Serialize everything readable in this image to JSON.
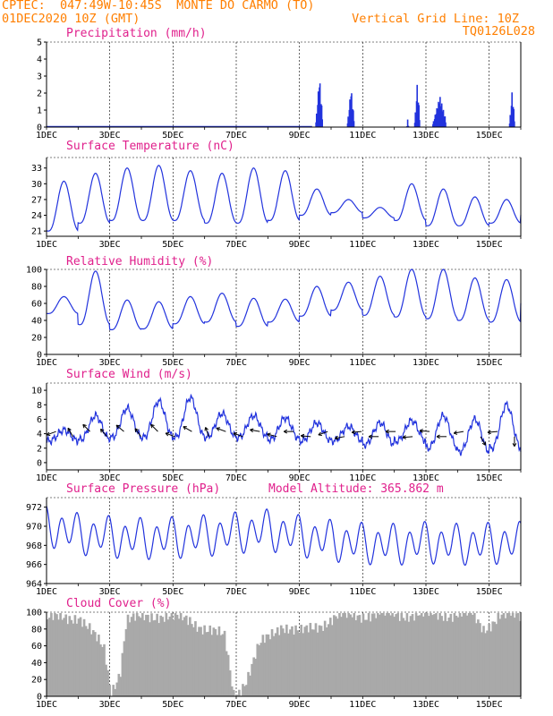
{
  "header": {
    "line1": "CPTEC:  047:49W-10:45S  MONTE DO CARMO (TO)",
    "line2_left": "01DEC2020 10Z (GMT)",
    "line2_right": "Vertical Grid Line: 10Z",
    "line3_right": "TQ0126L028"
  },
  "colors": {
    "header": "#ff7f00",
    "title": "#e0208c",
    "series": "#2233dd",
    "cloud": "#a9a9a9"
  },
  "x_tick_labels": [
    "1DEC",
    "3DEC",
    "5DEC",
    "7DEC",
    "9DEC",
    "11DEC",
    "13DEC",
    "15DEC"
  ],
  "chart_data": [
    {
      "type": "bar",
      "title": "Precipitation (mm/h)",
      "ylim": [
        0,
        5
      ],
      "yticks": [
        "0",
        "1",
        "2",
        "3",
        "4",
        "5"
      ],
      "x_domain_days": [
        1,
        16
      ],
      "bursts": [
        {
          "day": 9.6,
          "width": 0.2,
          "peak": 3.1
        },
        {
          "day": 10.6,
          "width": 0.2,
          "peak": 2.4
        },
        {
          "day": 12.4,
          "width": 0.05,
          "peak": 0.5
        },
        {
          "day": 12.7,
          "width": 0.15,
          "peak": 2.8
        },
        {
          "day": 13.4,
          "width": 0.4,
          "peak": 1.9
        },
        {
          "day": 15.7,
          "width": 0.15,
          "peak": 2.3
        }
      ]
    },
    {
      "type": "line",
      "title": "Surface Temperature (nC)",
      "ylim": [
        20,
        35
      ],
      "yticks": [
        "21",
        "24",
        "27",
        "30",
        "33"
      ],
      "ytick_values": [
        21,
        24,
        27,
        30,
        33
      ],
      "x_domain_days": [
        1,
        16
      ],
      "daily_max": [
        30.5,
        32,
        33,
        33.5,
        32.5,
        32,
        33,
        32.5,
        29,
        27,
        25.5,
        30,
        29,
        27.5,
        27,
        28
      ],
      "daily_min": [
        21,
        22.5,
        23,
        23,
        23,
        22.5,
        22.5,
        23,
        24,
        24.5,
        23.5,
        23,
        22,
        22,
        22.5,
        24
      ]
    },
    {
      "type": "line",
      "title": "Relative Humidity (%)",
      "ylim": [
        0,
        100
      ],
      "yticks": [
        "0",
        "20",
        "40",
        "60",
        "80",
        "100"
      ],
      "ytick_values": [
        0,
        20,
        40,
        60,
        80,
        100
      ],
      "x_domain_days": [
        1,
        16
      ],
      "daily_max": [
        68,
        98,
        64,
        62,
        68,
        72,
        66,
        65,
        80,
        85,
        92,
        100,
        100,
        90,
        88,
        90
      ],
      "daily_min": [
        48,
        35,
        29,
        30,
        36,
        38,
        33,
        38,
        45,
        52,
        46,
        44,
        42,
        40,
        38,
        60
      ]
    },
    {
      "type": "line",
      "title": "Surface Wind (m/s)",
      "ylim": [
        -1,
        11
      ],
      "yticks": [
        "0",
        "2",
        "4",
        "6",
        "8",
        "10"
      ],
      "ytick_values": [
        0,
        2,
        4,
        6,
        8,
        10
      ],
      "x_domain_days": [
        1,
        16
      ],
      "daily_max": [
        4.5,
        6.5,
        7.5,
        8.5,
        9,
        6.8,
        6.5,
        6.2,
        5.5,
        5,
        5.5,
        5.8,
        6.5,
        6,
        8,
        6
      ],
      "daily_min": [
        3,
        3.2,
        3.5,
        3.5,
        3.5,
        3.5,
        3.5,
        3.2,
        3,
        3,
        2.5,
        3,
        2,
        1.5,
        2,
        1.5
      ],
      "wind_arrow_dirs_deg": [
        160,
        240,
        225,
        230,
        220,
        235,
        225,
        200,
        210,
        250,
        200,
        200,
        190,
        195,
        180,
        185,
        160,
        170,
        175,
        180,
        180,
        175,
        185,
        180,
        170,
        60,
        175,
        90
      ]
    },
    {
      "type": "line",
      "title": "Surface Pressure (hPa)",
      "annotation": "Model Altitude: 365.862  m",
      "ylim": [
        964,
        973
      ],
      "yticks": [
        "964",
        "966",
        "968",
        "970",
        "972"
      ],
      "ytick_values": [
        964,
        966,
        968,
        970,
        972
      ],
      "x_domain_days": [
        1,
        16
      ],
      "semi_diurnal_amplitude": 2.4,
      "baseline": 968.7,
      "trend_offset": [
        1.4,
        0.5,
        0.2,
        0.0,
        0.1,
        0.3,
        0.6,
        0.9,
        0.3,
        -0.2,
        -0.5,
        -0.6,
        -0.4,
        -0.6,
        -0.5,
        -0.4
      ]
    },
    {
      "type": "area",
      "title": "Cloud Cover (%)",
      "ylim": [
        0,
        100
      ],
      "yticks": [
        "0",
        "20",
        "40",
        "60",
        "80",
        "100"
      ],
      "ytick_values": [
        0,
        20,
        40,
        60,
        80,
        100
      ],
      "x_domain_days": [
        1,
        16
      ],
      "key_points": [
        [
          1,
          92
        ],
        [
          2,
          95
        ],
        [
          2.8,
          55
        ],
        [
          3.0,
          5
        ],
        [
          3.3,
          30
        ],
        [
          3.5,
          90
        ],
        [
          4.5,
          97
        ],
        [
          5.5,
          90
        ],
        [
          6.6,
          70
        ],
        [
          6.9,
          0
        ],
        [
          7.3,
          20
        ],
        [
          7.7,
          60
        ],
        [
          8.4,
          85
        ],
        [
          9.0,
          75
        ],
        [
          9.6,
          85
        ],
        [
          10.2,
          95
        ],
        [
          11.5,
          98
        ],
        [
          13,
          97
        ],
        [
          14.4,
          98
        ],
        [
          14.8,
          80
        ],
        [
          15.3,
          96
        ],
        [
          16,
          95
        ]
      ]
    }
  ]
}
